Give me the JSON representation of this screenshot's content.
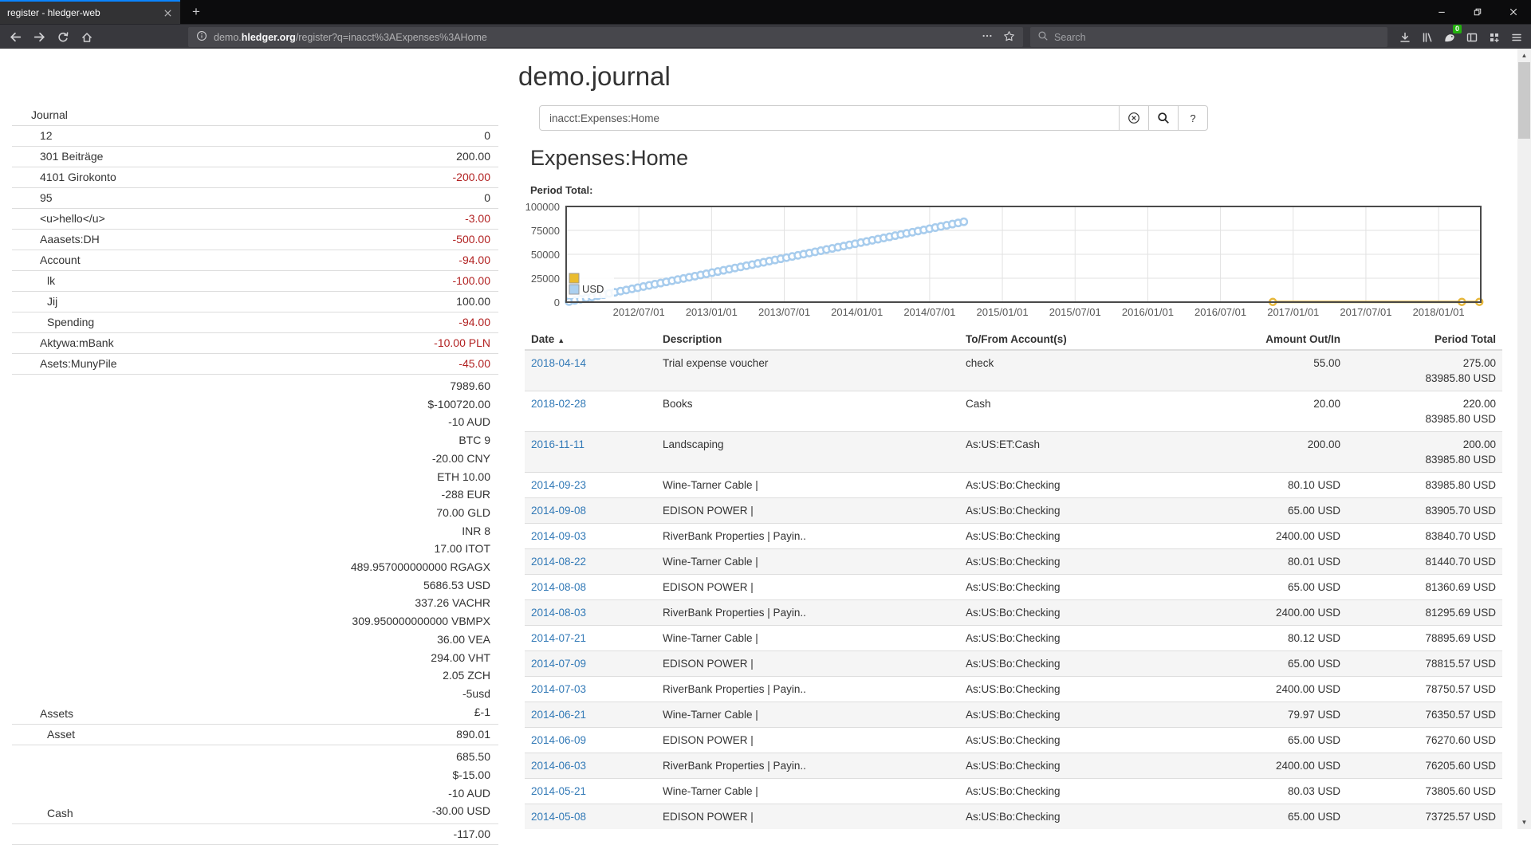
{
  "browser": {
    "tab_title": "register - hledger-web",
    "url": {
      "prefix": "demo.",
      "domain": "hledger.org",
      "path": "/register?q=inacct%3AExpenses%3AHome"
    },
    "search_placeholder": "Search",
    "extension_badge": "0"
  },
  "page": {
    "title": "demo.journal",
    "search_value": "inacct:Expenses:Home",
    "help_button_label": "?",
    "account_heading": "Expenses:Home",
    "period_total_label": "Period Total:"
  },
  "sidebar": {
    "header": "Journal",
    "accounts": [
      {
        "name": "12",
        "indent": 1,
        "neg": false,
        "lines": [
          "0"
        ]
      },
      {
        "name": "301 Beiträge",
        "indent": 1,
        "neg": false,
        "lines": [
          "200.00"
        ]
      },
      {
        "name": "4101 Girokonto",
        "indent": 1,
        "neg": true,
        "lines": [
          "-200.00"
        ]
      },
      {
        "name": "95",
        "indent": 1,
        "neg": false,
        "lines": [
          "0"
        ]
      },
      {
        "name": "<u>hello</u>",
        "indent": 1,
        "neg": true,
        "lines": [
          "-3.00"
        ]
      },
      {
        "name": "Aaasets:DH",
        "indent": 1,
        "neg": true,
        "lines": [
          "-500.00"
        ]
      },
      {
        "name": "Account",
        "indent": 1,
        "neg": true,
        "lines": [
          "-94.00"
        ]
      },
      {
        "name": "lk",
        "indent": 2,
        "neg": true,
        "lines": [
          "-100.00"
        ]
      },
      {
        "name": "Jij",
        "indent": 2,
        "neg": false,
        "lines": [
          "100.00"
        ]
      },
      {
        "name": "Spending",
        "indent": 2,
        "neg": true,
        "lines": [
          "-94.00"
        ]
      },
      {
        "name": "Aktywa:mBank",
        "indent": 1,
        "neg": true,
        "lines": [
          "-10.00 PLN"
        ]
      },
      {
        "name": "Asets:MunyPile",
        "indent": 1,
        "neg": true,
        "lines": [
          "-45.00"
        ]
      },
      {
        "name": "Assets",
        "indent": 1,
        "neg": false,
        "lines": [
          "7989.60",
          "$-100720.00",
          "-10 AUD",
          "BTC 9",
          "-20.00 CNY",
          "ETH 10.00",
          "-288 EUR",
          "70.00 GLD",
          "INR 8",
          "17.00 ITOT",
          "489.957000000000 RGAGX",
          "5686.53 USD",
          "337.26 VACHR",
          "309.950000000000 VBMPX",
          "36.00 VEA",
          "294.00 VHT",
          "2.05 ZCH",
          "-5usd",
          "£-1"
        ]
      },
      {
        "name": "Asset",
        "indent": 2,
        "neg": false,
        "lines": [
          "890.01"
        ]
      },
      {
        "name": "Cash",
        "indent": 2,
        "neg": false,
        "lines": [
          "685.50",
          "$-15.00",
          "-10 AUD",
          "-30.00 USD"
        ]
      },
      {
        "name": "",
        "indent": 2,
        "neg": false,
        "lines": [
          "-117.00"
        ]
      }
    ]
  },
  "chart_data": {
    "type": "line",
    "title": "Period Total:",
    "grid": true,
    "legend_position": "bottom-left-inside",
    "x_axis": {
      "min": 2012.0,
      "max": 2018.29,
      "tick_positions": [
        2012.5,
        2013.0,
        2013.5,
        2014.0,
        2014.5,
        2015.0,
        2015.5,
        2016.0,
        2016.5,
        2017.0,
        2017.5,
        2018.0
      ],
      "tick_labels": [
        "2012/07/01",
        "2013/01/01",
        "2013/07/01",
        "2014/01/01",
        "2014/07/01",
        "2015/01/01",
        "2015/07/01",
        "2016/01/01",
        "2016/07/01",
        "2017/01/01",
        "2017/07/01",
        "2018/01/01"
      ]
    },
    "y_axis": {
      "min": 0,
      "max": 100000,
      "ticks": [
        0,
        25000,
        50000,
        75000,
        100000
      ]
    },
    "legend": [
      {
        "label": "",
        "color": "#eabc2f"
      },
      {
        "label": "USD",
        "color": "#abd0f0"
      }
    ],
    "series": [
      {
        "name": "",
        "color": "#e6b73b",
        "line_color": "#e6b73b",
        "line_width": 3,
        "marker_r": 4,
        "points": [
          [
            2016.86,
            200
          ],
          [
            2018.16,
            220
          ],
          [
            2018.28,
            275
          ]
        ]
      },
      {
        "name": "USD",
        "color": "#a7cced",
        "line_color": "#bad6ef",
        "line_width": 2,
        "marker_r": 4.2,
        "trend": {
          "from": [
            2012.02,
            600
          ],
          "to": [
            2014.735,
            83986
          ],
          "n": 70
        }
      }
    ]
  },
  "register": {
    "columns": [
      "Date",
      "Description",
      "To/From Account(s)",
      "Amount Out/In",
      "Period Total"
    ],
    "sort_indicator": "▲",
    "rows": [
      {
        "date": "2018-04-14",
        "description": "Trial expense voucher",
        "account": "check",
        "amount": "55.00",
        "totals": [
          "275.00",
          "83985.80 USD"
        ]
      },
      {
        "date": "2018-02-28",
        "description": "Books",
        "account": "Cash",
        "amount": "20.00",
        "totals": [
          "220.00",
          "83985.80 USD"
        ]
      },
      {
        "date": "2016-11-11",
        "description": "Landscaping",
        "account": "As:US:ET:Cash",
        "amount": "200.00",
        "totals": [
          "200.00",
          "83985.80 USD"
        ]
      },
      {
        "date": "2014-09-23",
        "description": "Wine-Tarner Cable |",
        "account": "As:US:Bo:Checking",
        "amount": "80.10 USD",
        "totals": [
          "83985.80 USD"
        ]
      },
      {
        "date": "2014-09-08",
        "description": "EDISON POWER |",
        "account": "As:US:Bo:Checking",
        "amount": "65.00 USD",
        "totals": [
          "83905.70 USD"
        ]
      },
      {
        "date": "2014-09-03",
        "description": "RiverBank Properties | Payin..",
        "account": "As:US:Bo:Checking",
        "amount": "2400.00 USD",
        "totals": [
          "83840.70 USD"
        ]
      },
      {
        "date": "2014-08-22",
        "description": "Wine-Tarner Cable |",
        "account": "As:US:Bo:Checking",
        "amount": "80.01 USD",
        "totals": [
          "81440.70 USD"
        ]
      },
      {
        "date": "2014-08-08",
        "description": "EDISON POWER |",
        "account": "As:US:Bo:Checking",
        "amount": "65.00 USD",
        "totals": [
          "81360.69 USD"
        ]
      },
      {
        "date": "2014-08-03",
        "description": "RiverBank Properties | Payin..",
        "account": "As:US:Bo:Checking",
        "amount": "2400.00 USD",
        "totals": [
          "81295.69 USD"
        ]
      },
      {
        "date": "2014-07-21",
        "description": "Wine-Tarner Cable |",
        "account": "As:US:Bo:Checking",
        "amount": "80.12 USD",
        "totals": [
          "78895.69 USD"
        ]
      },
      {
        "date": "2014-07-09",
        "description": "EDISON POWER |",
        "account": "As:US:Bo:Checking",
        "amount": "65.00 USD",
        "totals": [
          "78815.57 USD"
        ]
      },
      {
        "date": "2014-07-03",
        "description": "RiverBank Properties | Payin..",
        "account": "As:US:Bo:Checking",
        "amount": "2400.00 USD",
        "totals": [
          "78750.57 USD"
        ]
      },
      {
        "date": "2014-06-21",
        "description": "Wine-Tarner Cable |",
        "account": "As:US:Bo:Checking",
        "amount": "79.97 USD",
        "totals": [
          "76350.57 USD"
        ]
      },
      {
        "date": "2014-06-09",
        "description": "EDISON POWER |",
        "account": "As:US:Bo:Checking",
        "amount": "65.00 USD",
        "totals": [
          "76270.60 USD"
        ]
      },
      {
        "date": "2014-06-03",
        "description": "RiverBank Properties | Payin..",
        "account": "As:US:Bo:Checking",
        "amount": "2400.00 USD",
        "totals": [
          "76205.60 USD"
        ]
      },
      {
        "date": "2014-05-21",
        "description": "Wine-Tarner Cable |",
        "account": "As:US:Bo:Checking",
        "amount": "80.03 USD",
        "totals": [
          "73805.60 USD"
        ]
      },
      {
        "date": "2014-05-08",
        "description": "EDISON POWER |",
        "account": "As:US:Bo:Checking",
        "amount": "65.00 USD",
        "totals": [
          "73725.57 USD"
        ]
      }
    ]
  }
}
